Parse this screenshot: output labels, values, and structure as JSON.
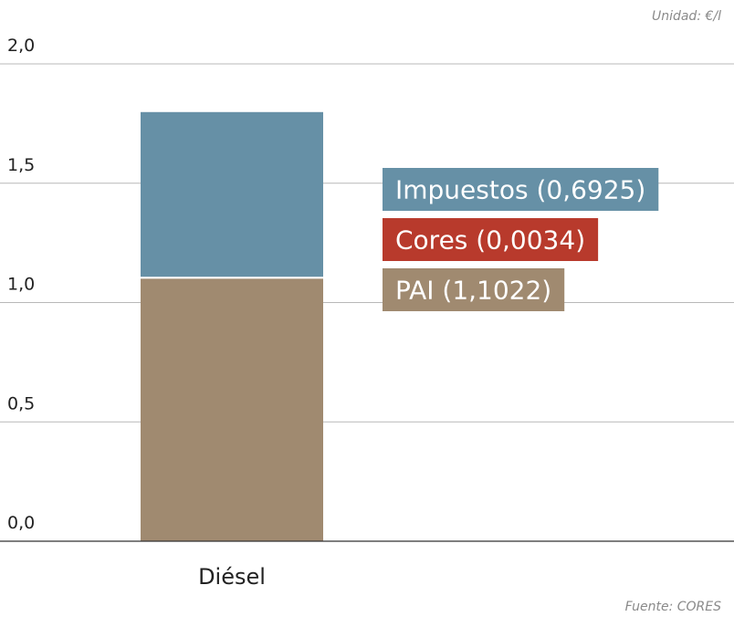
{
  "unit_note": "Unidad: €/l",
  "source_note": "Fuente: CORES",
  "chart_data": {
    "type": "bar",
    "stacked": true,
    "categories": [
      "Diésel"
    ],
    "series": [
      {
        "name": "PAI",
        "values": [
          1.1022
        ],
        "color": "#a08a70",
        "label": "PAI (1,1022)"
      },
      {
        "name": "Cores",
        "values": [
          0.0034
        ],
        "color": "#b83a2c",
        "label": "Cores (0,0034)"
      },
      {
        "name": "Impuestos",
        "values": [
          0.6925
        ],
        "color": "#6690a6",
        "label": "Impuestos (0,6925)"
      }
    ],
    "ylim": [
      0,
      2.0
    ],
    "yticks": [
      "0,0",
      "0,5",
      "1,0",
      "1,5",
      "2,0"
    ],
    "ytick_values": [
      0,
      0.5,
      1.0,
      1.5,
      2.0
    ],
    "grid": true,
    "legend": "right"
  }
}
